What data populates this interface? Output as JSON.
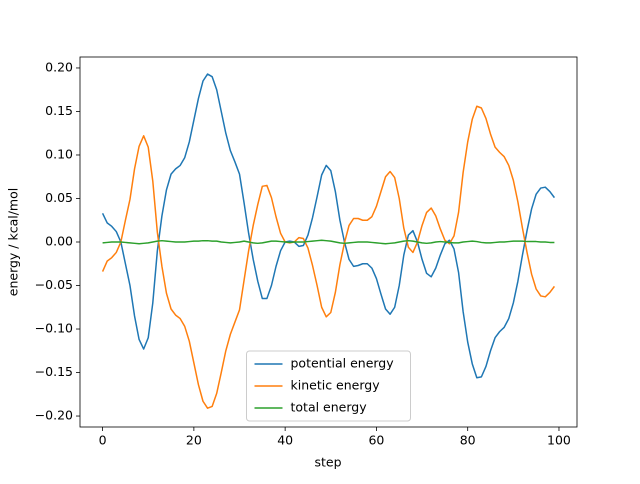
{
  "chart_data": {
    "type": "line",
    "x_label": "step",
    "y_label": "energy / kcal/mol",
    "x": [
      0,
      1,
      2,
      3,
      4,
      5,
      6,
      7,
      8,
      9,
      10,
      11,
      12,
      13,
      14,
      15,
      16,
      17,
      18,
      19,
      20,
      21,
      22,
      23,
      24,
      25,
      26,
      27,
      28,
      29,
      30,
      31,
      32,
      33,
      34,
      35,
      36,
      37,
      38,
      39,
      40,
      41,
      42,
      43,
      44,
      45,
      46,
      47,
      48,
      49,
      50,
      51,
      52,
      53,
      54,
      55,
      56,
      57,
      58,
      59,
      60,
      61,
      62,
      63,
      64,
      65,
      66,
      67,
      68,
      69,
      70,
      71,
      72,
      73,
      74,
      75,
      76,
      77,
      78,
      79,
      80,
      81,
      82,
      83,
      84,
      85,
      86,
      87,
      88,
      89,
      90,
      91,
      92,
      93,
      94,
      95,
      96,
      97,
      98,
      99
    ],
    "series": [
      {
        "name": "potential energy",
        "color": "#1f77b4",
        "values": [
          0.033,
          0.022,
          0.018,
          0.012,
          0.0,
          -0.025,
          -0.05,
          -0.085,
          -0.112,
          -0.123,
          -0.11,
          -0.07,
          -0.01,
          0.03,
          0.06,
          0.078,
          0.084,
          0.088,
          0.097,
          0.115,
          0.14,
          0.165,
          0.185,
          0.193,
          0.19,
          0.175,
          0.15,
          0.125,
          0.105,
          0.092,
          0.078,
          0.045,
          0.01,
          -0.02,
          -0.045,
          -0.065,
          -0.065,
          -0.05,
          -0.028,
          -0.01,
          0.0,
          0.001,
          0.0,
          -0.005,
          -0.004,
          0.008,
          0.028,
          0.052,
          0.077,
          0.088,
          0.082,
          0.058,
          0.025,
          0.0,
          -0.02,
          -0.028,
          -0.027,
          -0.025,
          -0.025,
          -0.03,
          -0.042,
          -0.06,
          -0.077,
          -0.083,
          -0.075,
          -0.05,
          -0.015,
          0.008,
          0.013,
          0.0,
          -0.02,
          -0.036,
          -0.04,
          -0.03,
          -0.015,
          -0.002,
          0.002,
          -0.008,
          -0.035,
          -0.08,
          -0.115,
          -0.14,
          -0.156,
          -0.155,
          -0.143,
          -0.125,
          -0.11,
          -0.103,
          -0.098,
          -0.088,
          -0.07,
          -0.045,
          -0.015,
          0.013,
          0.038,
          0.055,
          0.062,
          0.063,
          0.058,
          0.051
        ]
      },
      {
        "name": "kinetic energy",
        "color": "#ff7f0e",
        "values": [
          -0.034,
          -0.022,
          -0.018,
          -0.012,
          0.0,
          0.025,
          0.049,
          0.084,
          0.11,
          0.122,
          0.109,
          0.07,
          0.011,
          -0.028,
          -0.059,
          -0.077,
          -0.084,
          -0.088,
          -0.097,
          -0.114,
          -0.139,
          -0.164,
          -0.183,
          -0.191,
          -0.189,
          -0.174,
          -0.15,
          -0.125,
          -0.106,
          -0.092,
          -0.078,
          -0.044,
          -0.01,
          0.019,
          0.043,
          0.064,
          0.065,
          0.051,
          0.029,
          0.01,
          0.0,
          -0.001,
          0.0,
          0.005,
          0.004,
          -0.007,
          -0.027,
          -0.05,
          -0.075,
          -0.086,
          -0.081,
          -0.058,
          -0.026,
          -0.001,
          0.019,
          0.027,
          0.027,
          0.025,
          0.025,
          0.029,
          0.041,
          0.058,
          0.075,
          0.081,
          0.074,
          0.05,
          0.016,
          -0.006,
          -0.012,
          0.0,
          0.019,
          0.034,
          0.039,
          0.03,
          0.015,
          0.002,
          -0.002,
          0.007,
          0.034,
          0.08,
          0.115,
          0.141,
          0.156,
          0.154,
          0.142,
          0.124,
          0.109,
          0.103,
          0.098,
          0.088,
          0.071,
          0.046,
          0.016,
          -0.012,
          -0.037,
          -0.054,
          -0.062,
          -0.063,
          -0.058,
          -0.051
        ]
      },
      {
        "name": "total energy",
        "color": "#2ca02c",
        "values": [
          -0.001,
          -0.0005,
          0,
          0,
          0,
          -0.0005,
          -0.001,
          -0.0015,
          -0.002,
          -0.0015,
          -0.001,
          0,
          0.001,
          0.0015,
          0.001,
          0.0005,
          0,
          0,
          0,
          0.0005,
          0.001,
          0.001,
          0.0015,
          0.0015,
          0.001,
          0.001,
          0,
          -0.0005,
          -0.001,
          -0.0005,
          0,
          0.001,
          0,
          -0.001,
          -0.0015,
          -0.001,
          0,
          0.001,
          0.001,
          0.0005,
          0,
          -0.0005,
          0,
          0,
          0,
          0.0005,
          0.001,
          0.0015,
          0.002,
          0.0015,
          0.001,
          0,
          -0.001,
          -0.0015,
          -0.001,
          -0.0005,
          0,
          0,
          0,
          -0.0005,
          -0.001,
          -0.0015,
          -0.002,
          -0.0015,
          -0.001,
          0,
          0.001,
          0.0015,
          0.001,
          0,
          -0.001,
          -0.0015,
          -0.001,
          0,
          0.0005,
          0,
          -0.0005,
          -0.001,
          -0.001,
          0,
          0.0005,
          0.001,
          0.0005,
          -0.0005,
          -0.001,
          -0.001,
          -0.0005,
          0,
          0,
          0.0005,
          0.001,
          0.001,
          0.001,
          0.0005,
          0.0005,
          0.0005,
          0,
          0,
          -0.0005,
          -0.0005
        ]
      }
    ],
    "xlim": [
      -4.95,
      103.95
    ],
    "xticks": [
      0,
      20,
      40,
      60,
      80,
      100
    ],
    "ylim": [
      -0.2126,
      0.2126
    ],
    "yticks": [
      {
        "value": -0.2,
        "label": "−0.20"
      },
      {
        "value": -0.15,
        "label": "−0.15"
      },
      {
        "value": -0.1,
        "label": "−0.10"
      },
      {
        "value": -0.05,
        "label": "−0.05"
      },
      {
        "value": 0,
        "label": "0.00"
      },
      {
        "value": 0.05,
        "label": "0.05"
      },
      {
        "value": 0.1,
        "label": "0.10"
      },
      {
        "value": 0.15,
        "label": "0.15"
      },
      {
        "value": 0.2,
        "label": "0.20"
      }
    ],
    "legend": "lower center",
    "grid": false
  }
}
